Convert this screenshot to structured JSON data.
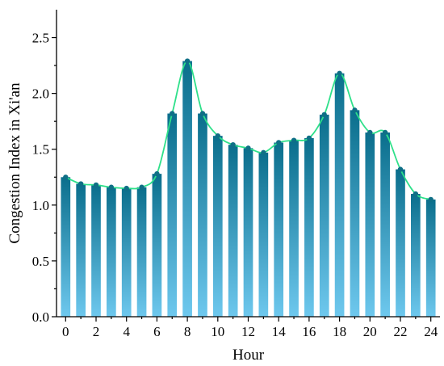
{
  "chart_data": {
    "type": "bar",
    "x": [
      0,
      1,
      2,
      3,
      4,
      5,
      6,
      7,
      8,
      9,
      10,
      11,
      12,
      13,
      14,
      15,
      16,
      17,
      18,
      19,
      20,
      21,
      22,
      23,
      24
    ],
    "values": [
      1.25,
      1.19,
      1.18,
      1.16,
      1.15,
      1.16,
      1.28,
      1.82,
      2.29,
      1.82,
      1.62,
      1.54,
      1.51,
      1.47,
      1.56,
      1.58,
      1.6,
      1.81,
      2.18,
      1.85,
      1.65,
      1.65,
      1.32,
      1.1,
      1.05
    ],
    "xlabel": "Hour",
    "ylabel": "Congestion Index in Xi'an",
    "xticks": [
      0,
      2,
      4,
      6,
      8,
      10,
      12,
      14,
      16,
      18,
      20,
      22,
      24
    ],
    "xlim": [
      -0.6,
      24.6
    ],
    "yticks": [
      0.0,
      0.5,
      1.0,
      1.5,
      2.0,
      2.5
    ],
    "ytick_labels": [
      "0.0",
      "0.5",
      "1.0",
      "1.5",
      "2.0",
      "2.5"
    ],
    "ylim": [
      0,
      2.75
    ],
    "overlay": "smoothed line through bar tops",
    "grid": false,
    "colors": {
      "bar_top": "#0a6e8c",
      "bar_bottom": "#6ec8ee",
      "line": "#2ee08a",
      "marker": "#0f6f86"
    }
  }
}
